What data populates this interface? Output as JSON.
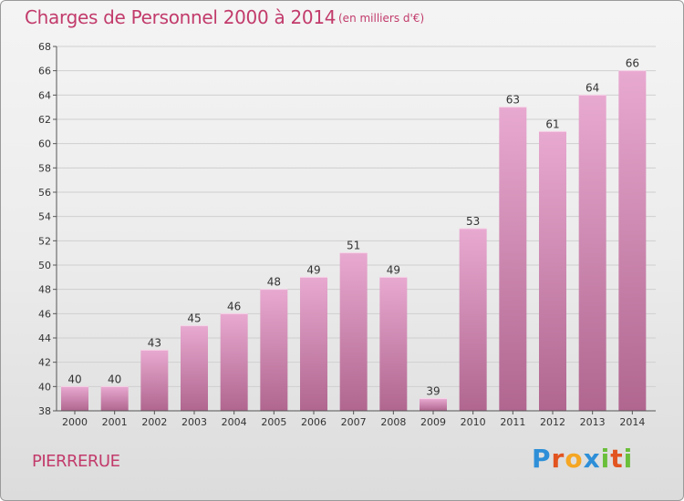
{
  "header": {
    "title": "Charges de Personnel 2000 à 2014",
    "unit": "(en milliers d'€)"
  },
  "footer": {
    "commune": "PIERRERUE",
    "brand_letters": [
      "P",
      "r",
      "o",
      "x",
      "i",
      "t",
      "i"
    ],
    "brand_colors": [
      "#2e8fd8",
      "#e2541f",
      "#f5a623",
      "#2e8fd8",
      "#6abf3a",
      "#e2541f",
      "#6abf3a"
    ]
  },
  "colors": {
    "title": "#c23b6b",
    "bar_top": "#e8a9d0",
    "bar_bottom": "#b0668f",
    "grid": "#cfcfcf"
  },
  "chart_data": {
    "type": "bar",
    "title": "Charges de Personnel 2000 à 2014",
    "xlabel": "",
    "ylabel": "",
    "grid": true,
    "categories": [
      "2000",
      "2001",
      "2002",
      "2003",
      "2004",
      "2005",
      "2006",
      "2007",
      "2008",
      "2009",
      "2010",
      "2011",
      "2012",
      "2013",
      "2014"
    ],
    "values": [
      40,
      40,
      43,
      45,
      46,
      48,
      49,
      51,
      49,
      39,
      53,
      63,
      61,
      64,
      66
    ],
    "ylim": [
      38,
      68
    ],
    "yticks": [
      38,
      40,
      42,
      44,
      46,
      48,
      50,
      52,
      54,
      56,
      58,
      60,
      62,
      64,
      66,
      68
    ]
  }
}
